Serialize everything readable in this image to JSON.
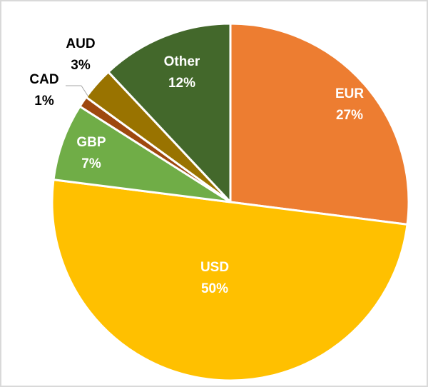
{
  "chart_data": {
    "type": "pie",
    "title": "",
    "start_angle_deg": 0,
    "direction": "clockwise",
    "slices": [
      {
        "label": "EUR",
        "value": 27,
        "pct_label": "27%",
        "color": "#ED7D31"
      },
      {
        "label": "USD",
        "value": 50,
        "pct_label": "50%",
        "color": "#FFC000"
      },
      {
        "label": "GBP",
        "value": 7,
        "pct_label": "7%",
        "color": "#70AD47"
      },
      {
        "label": "CAD",
        "value": 1,
        "pct_label": "1%",
        "color": "#9E480E"
      },
      {
        "label": "AUD",
        "value": 3,
        "pct_label": "3%",
        "color": "#997300"
      },
      {
        "label": "Other",
        "value": 12,
        "pct_label": "12%",
        "color": "#43682B"
      }
    ]
  }
}
